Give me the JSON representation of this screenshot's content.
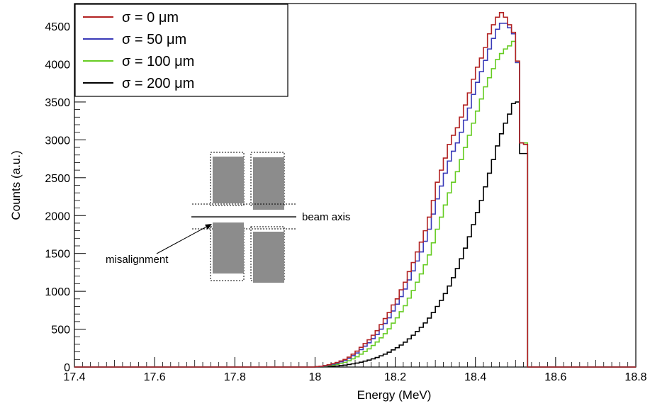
{
  "chart_data": {
    "type": "line",
    "title": "",
    "xlabel": "Energy (MeV)",
    "ylabel": "Counts (a.u.)",
    "xlim": [
      17.4,
      18.8
    ],
    "ylim": [
      0,
      4800
    ],
    "x_ticks": [
      "17.4",
      "17.6",
      "17.8",
      "18",
      "18.2",
      "18.4",
      "18.6",
      "18.8"
    ],
    "y_ticks": [
      "0",
      "500",
      "1000",
      "1500",
      "2000",
      "2500",
      "3000",
      "3500",
      "4000",
      "4500"
    ],
    "grid": false,
    "legend_position": "top-left",
    "series": [
      {
        "name": "σ = 0 μm",
        "color": "#b22222",
        "x": [
          18.0,
          18.01,
          18.02,
          18.03,
          18.04,
          18.05,
          18.06,
          18.07,
          18.08,
          18.09,
          18.1,
          18.11,
          18.12,
          18.13,
          18.14,
          18.15,
          18.16,
          18.17,
          18.18,
          18.19,
          18.2,
          18.21,
          18.22,
          18.23,
          18.24,
          18.25,
          18.26,
          18.27,
          18.28,
          18.29,
          18.3,
          18.31,
          18.32,
          18.33,
          18.34,
          18.35,
          18.36,
          18.37,
          18.38,
          18.39,
          18.4,
          18.41,
          18.42,
          18.43,
          18.44,
          18.45,
          18.46,
          18.47,
          18.48,
          18.49,
          18.5,
          18.51,
          18.52,
          18.53,
          18.54,
          18.55
        ],
        "y": [
          5,
          10,
          20,
          30,
          45,
          60,
          80,
          100,
          130,
          170,
          210,
          260,
          310,
          360,
          420,
          480,
          560,
          640,
          720,
          820,
          900,
          1020,
          1120,
          1260,
          1380,
          1520,
          1650,
          1800,
          1980,
          2200,
          2440,
          2600,
          2760,
          2940,
          3060,
          3160,
          3300,
          3460,
          3620,
          3800,
          3960,
          4080,
          4220,
          4400,
          4520,
          4620,
          4680,
          4620,
          4520,
          4420,
          4040,
          2960,
          2940,
          0,
          0,
          0
        ]
      },
      {
        "name": "σ = 50 μm",
        "color": "#3a3ab8",
        "x": [
          18.0,
          18.01,
          18.02,
          18.03,
          18.04,
          18.05,
          18.06,
          18.07,
          18.08,
          18.09,
          18.1,
          18.11,
          18.12,
          18.13,
          18.14,
          18.15,
          18.16,
          18.17,
          18.18,
          18.19,
          18.2,
          18.21,
          18.22,
          18.23,
          18.24,
          18.25,
          18.26,
          18.27,
          18.28,
          18.29,
          18.3,
          18.31,
          18.32,
          18.33,
          18.34,
          18.35,
          18.36,
          18.37,
          18.38,
          18.39,
          18.4,
          18.41,
          18.42,
          18.43,
          18.44,
          18.45,
          18.46,
          18.47,
          18.48,
          18.49,
          18.5,
          18.51,
          18.52,
          18.53,
          18.54,
          18.55
        ],
        "y": [
          4,
          8,
          15,
          25,
          38,
          50,
          68,
          88,
          115,
          150,
          185,
          230,
          275,
          320,
          375,
          430,
          500,
          575,
          650,
          740,
          830,
          930,
          1030,
          1150,
          1270,
          1400,
          1520,
          1660,
          1820,
          2020,
          2220,
          2390,
          2560,
          2720,
          2850,
          2960,
          3100,
          3260,
          3420,
          3600,
          3760,
          3900,
          4050,
          4200,
          4340,
          4460,
          4540,
          4540,
          4480,
          4400,
          4020,
          2960,
          2940,
          0,
          0,
          0
        ]
      },
      {
        "name": "σ = 100 μm",
        "color": "#66cc22",
        "x": [
          18.0,
          18.01,
          18.02,
          18.03,
          18.04,
          18.05,
          18.06,
          18.07,
          18.08,
          18.09,
          18.1,
          18.11,
          18.12,
          18.13,
          18.14,
          18.15,
          18.16,
          18.17,
          18.18,
          18.19,
          18.2,
          18.21,
          18.22,
          18.23,
          18.24,
          18.25,
          18.26,
          18.27,
          18.28,
          18.29,
          18.3,
          18.31,
          18.32,
          18.33,
          18.34,
          18.35,
          18.36,
          18.37,
          18.38,
          18.39,
          18.4,
          18.41,
          18.42,
          18.43,
          18.44,
          18.45,
          18.46,
          18.47,
          18.48,
          18.49,
          18.5,
          18.51,
          18.52,
          18.53,
          18.54,
          18.55
        ],
        "y": [
          3,
          6,
          11,
          18,
          27,
          36,
          48,
          62,
          82,
          108,
          135,
          170,
          205,
          240,
          285,
          330,
          385,
          440,
          505,
          580,
          650,
          730,
          810,
          910,
          1010,
          1120,
          1230,
          1350,
          1480,
          1640,
          1820,
          1980,
          2140,
          2300,
          2440,
          2580,
          2740,
          2900,
          3060,
          3220,
          3380,
          3540,
          3700,
          3820,
          3940,
          4060,
          4140,
          4200,
          4240,
          4300,
          4020,
          2960,
          2960,
          0,
          0,
          0
        ]
      },
      {
        "name": "σ = 200 μm",
        "color": "#000000",
        "x": [
          18.0,
          18.01,
          18.02,
          18.03,
          18.04,
          18.05,
          18.06,
          18.07,
          18.08,
          18.09,
          18.1,
          18.11,
          18.12,
          18.13,
          18.14,
          18.15,
          18.16,
          18.17,
          18.18,
          18.19,
          18.2,
          18.21,
          18.22,
          18.23,
          18.24,
          18.25,
          18.26,
          18.27,
          18.28,
          18.29,
          18.3,
          18.31,
          18.32,
          18.33,
          18.34,
          18.35,
          18.36,
          18.37,
          18.38,
          18.39,
          18.4,
          18.41,
          18.42,
          18.43,
          18.44,
          18.45,
          18.46,
          18.47,
          18.48,
          18.49,
          18.5,
          18.51,
          18.52,
          18.53,
          18.54,
          18.55
        ],
        "y": [
          1,
          2,
          4,
          7,
          10,
          14,
          19,
          25,
          33,
          42,
          52,
          64,
          78,
          92,
          108,
          126,
          148,
          170,
          196,
          226,
          256,
          290,
          328,
          372,
          420,
          470,
          524,
          582,
          646,
          720,
          800,
          880,
          970,
          1070,
          1180,
          1300,
          1430,
          1570,
          1720,
          1880,
          2040,
          2200,
          2380,
          2560,
          2740,
          2920,
          3080,
          3220,
          3340,
          3480,
          3500,
          2820,
          2820,
          0,
          0,
          0
        ]
      }
    ],
    "inset_annotations": [
      "beam axis",
      "misalignment"
    ]
  }
}
